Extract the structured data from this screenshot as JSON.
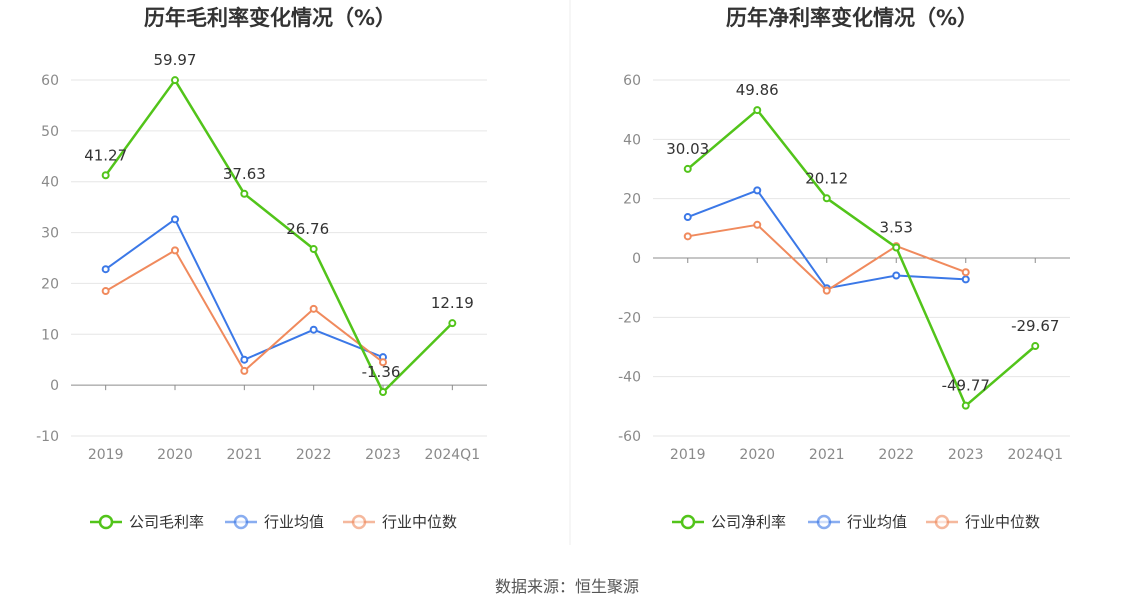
{
  "source": "数据来源：恒生聚源",
  "colors": {
    "company": "#52c41a",
    "avg": "#3b78e7",
    "median": "#f08a5d",
    "grid": "#e6e6e6",
    "axis": "#8c8c8c"
  },
  "chart_data": [
    {
      "type": "line",
      "title": "历年毛利率变化情况（%）",
      "categories": [
        "2019",
        "2020",
        "2021",
        "2022",
        "2023",
        "2024Q1"
      ],
      "ylim": [
        -10,
        60
      ],
      "yticks": [
        -10,
        0,
        10,
        20,
        30,
        40,
        50,
        60
      ],
      "grid": true,
      "legend_position": "bottom",
      "series": [
        {
          "name": "公司毛利率",
          "key": "company",
          "values": [
            41.27,
            59.97,
            37.63,
            26.76,
            -1.36,
            12.19
          ],
          "labels": [
            "41.27",
            "59.97",
            "37.63",
            "26.76",
            "-1.36",
            "12.19"
          ]
        },
        {
          "name": "行业均值",
          "key": "avg",
          "values": [
            22.8,
            32.6,
            5.0,
            10.9,
            5.5,
            null
          ]
        },
        {
          "name": "行业中位数",
          "key": "median",
          "values": [
            18.5,
            26.5,
            2.8,
            15.0,
            4.5,
            null
          ]
        }
      ]
    },
    {
      "type": "line",
      "title": "历年净利率变化情况（%）",
      "categories": [
        "2019",
        "2020",
        "2021",
        "2022",
        "2023",
        "2024Q1"
      ],
      "ylim": [
        -60,
        60
      ],
      "yticks": [
        -60,
        -40,
        -20,
        0,
        20,
        40,
        60
      ],
      "grid": true,
      "legend_position": "bottom",
      "series": [
        {
          "name": "公司净利率",
          "key": "company",
          "values": [
            30.03,
            49.86,
            20.12,
            3.53,
            -49.77,
            -29.67
          ],
          "labels": [
            "30.03",
            "49.86",
            "20.12",
            "3.53",
            "-49.77",
            "-29.67"
          ]
        },
        {
          "name": "行业均值",
          "key": "avg",
          "values": [
            13.8,
            22.8,
            -10.2,
            -5.9,
            -7.2,
            null
          ]
        },
        {
          "name": "行业中位数",
          "key": "median",
          "values": [
            7.3,
            11.2,
            -11.0,
            4.0,
            -4.8,
            null
          ]
        }
      ]
    }
  ]
}
